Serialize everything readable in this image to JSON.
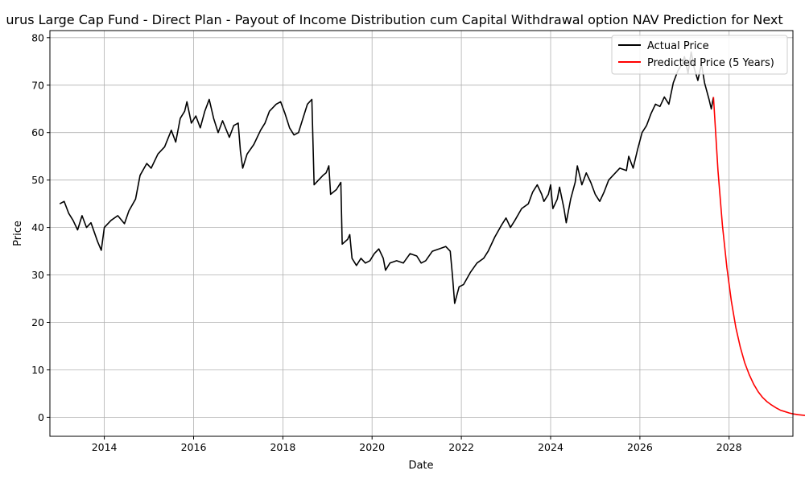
{
  "chart_data": {
    "type": "line",
    "title": "urus Large Cap Fund - Direct Plan - Payout of Income Distribution cum Capital Withdrawal option NAV Prediction for Next",
    "xlabel": "Date",
    "ylabel": "Price",
    "xlim": [
      2012.78,
      2029.43
    ],
    "ylim": [
      -4,
      81.5
    ],
    "xticks": [
      2014,
      2016,
      2018,
      2020,
      2022,
      2024,
      2026,
      2028
    ],
    "xtick_labels": [
      "2014",
      "2016",
      "2018",
      "2020",
      "2022",
      "2024",
      "2026",
      "2028"
    ],
    "yticks": [
      0,
      10,
      20,
      30,
      40,
      50,
      60,
      70,
      80
    ],
    "ytick_labels": [
      "0",
      "10",
      "20",
      "30",
      "40",
      "50",
      "60",
      "70",
      "80"
    ],
    "grid": true,
    "legend_position": "top-right",
    "series": [
      {
        "name": "Actual Price",
        "color": "#000000",
        "points": [
          [
            2013.0,
            45.0
          ],
          [
            2013.1,
            45.5
          ],
          [
            2013.2,
            43.0
          ],
          [
            2013.3,
            41.5
          ],
          [
            2013.4,
            39.5
          ],
          [
            2013.5,
            42.5
          ],
          [
            2013.6,
            40.0
          ],
          [
            2013.7,
            41.0
          ],
          [
            2013.85,
            37.0
          ],
          [
            2013.93,
            35.2
          ],
          [
            2014.0,
            40.0
          ],
          [
            2014.15,
            41.5
          ],
          [
            2014.3,
            42.5
          ],
          [
            2014.45,
            40.8
          ],
          [
            2014.55,
            43.5
          ],
          [
            2014.7,
            46.0
          ],
          [
            2014.8,
            51.0
          ],
          [
            2014.95,
            53.5
          ],
          [
            2015.05,
            52.5
          ],
          [
            2015.2,
            55.5
          ],
          [
            2015.35,
            57.0
          ],
          [
            2015.5,
            60.5
          ],
          [
            2015.6,
            58.0
          ],
          [
            2015.7,
            63.0
          ],
          [
            2015.8,
            64.5
          ],
          [
            2015.85,
            66.5
          ],
          [
            2015.95,
            62.0
          ],
          [
            2016.05,
            63.5
          ],
          [
            2016.15,
            61.0
          ],
          [
            2016.25,
            64.5
          ],
          [
            2016.35,
            67.0
          ],
          [
            2016.45,
            63.0
          ],
          [
            2016.55,
            60.0
          ],
          [
            2016.65,
            62.5
          ],
          [
            2016.8,
            59.0
          ],
          [
            2016.9,
            61.5
          ],
          [
            2017.0,
            62.0
          ],
          [
            2017.05,
            56.0
          ],
          [
            2017.1,
            52.5
          ],
          [
            2017.2,
            55.5
          ],
          [
            2017.35,
            57.5
          ],
          [
            2017.5,
            60.5
          ],
          [
            2017.6,
            62.0
          ],
          [
            2017.7,
            64.5
          ],
          [
            2017.85,
            66.0
          ],
          [
            2017.95,
            66.5
          ],
          [
            2018.05,
            64.0
          ],
          [
            2018.15,
            61.0
          ],
          [
            2018.25,
            59.5
          ],
          [
            2018.35,
            60.0
          ],
          [
            2018.45,
            63.0
          ],
          [
            2018.55,
            66.0
          ],
          [
            2018.65,
            67.0
          ],
          [
            2018.7,
            49.0
          ],
          [
            2018.8,
            50.0
          ],
          [
            2018.9,
            51.0
          ],
          [
            2018.97,
            51.5
          ],
          [
            2019.03,
            53.0
          ],
          [
            2019.07,
            47.0
          ],
          [
            2019.2,
            48.0
          ],
          [
            2019.3,
            49.5
          ],
          [
            2019.33,
            36.5
          ],
          [
            2019.45,
            37.5
          ],
          [
            2019.5,
            38.5
          ],
          [
            2019.55,
            33.5
          ],
          [
            2019.65,
            32.0
          ],
          [
            2019.75,
            33.5
          ],
          [
            2019.85,
            32.5
          ],
          [
            2019.95,
            33.0
          ],
          [
            2020.05,
            34.5
          ],
          [
            2020.15,
            35.5
          ],
          [
            2020.25,
            33.5
          ],
          [
            2020.3,
            31.0
          ],
          [
            2020.4,
            32.5
          ],
          [
            2020.55,
            33.0
          ],
          [
            2020.7,
            32.5
          ],
          [
            2020.85,
            34.5
          ],
          [
            2021.0,
            34.0
          ],
          [
            2021.1,
            32.5
          ],
          [
            2021.2,
            33.0
          ],
          [
            2021.35,
            35.0
          ],
          [
            2021.5,
            35.5
          ],
          [
            2021.65,
            36.0
          ],
          [
            2021.75,
            35.0
          ],
          [
            2021.8,
            30.0
          ],
          [
            2021.85,
            24.0
          ],
          [
            2021.95,
            27.5
          ],
          [
            2022.05,
            28.0
          ],
          [
            2022.2,
            30.5
          ],
          [
            2022.35,
            32.5
          ],
          [
            2022.5,
            33.5
          ],
          [
            2022.6,
            35.0
          ],
          [
            2022.75,
            38.0
          ],
          [
            2022.9,
            40.5
          ],
          [
            2023.0,
            42.0
          ],
          [
            2023.1,
            40.0
          ],
          [
            2023.2,
            41.5
          ],
          [
            2023.35,
            44.0
          ],
          [
            2023.5,
            45.0
          ],
          [
            2023.6,
            47.5
          ],
          [
            2023.7,
            49.0
          ],
          [
            2023.8,
            47.0
          ],
          [
            2023.85,
            45.5
          ],
          [
            2023.95,
            47.0
          ],
          [
            2024.0,
            49.0
          ],
          [
            2024.05,
            44.0
          ],
          [
            2024.15,
            46.0
          ],
          [
            2024.2,
            48.5
          ],
          [
            2024.3,
            44.0
          ],
          [
            2024.35,
            41.0
          ],
          [
            2024.45,
            46.0
          ],
          [
            2024.55,
            49.5
          ],
          [
            2024.6,
            53.0
          ],
          [
            2024.7,
            49.0
          ],
          [
            2024.8,
            51.5
          ],
          [
            2024.9,
            49.5
          ],
          [
            2025.0,
            47.0
          ],
          [
            2025.1,
            45.5
          ],
          [
            2025.2,
            47.5
          ],
          [
            2025.3,
            50.0
          ],
          [
            2025.45,
            51.5
          ],
          [
            2025.55,
            52.5
          ],
          [
            2025.7,
            52.0
          ],
          [
            2025.75,
            55.0
          ],
          [
            2025.85,
            52.5
          ],
          [
            2025.95,
            56.5
          ],
          [
            2026.05,
            60.0
          ],
          [
            2026.15,
            61.5
          ],
          [
            2026.25,
            64.0
          ],
          [
            2026.35,
            66.0
          ],
          [
            2026.45,
            65.5
          ],
          [
            2026.55,
            67.5
          ],
          [
            2026.65,
            66.0
          ],
          [
            2026.75,
            70.5
          ],
          [
            2026.85,
            73.0
          ],
          [
            2026.95,
            74.5
          ],
          [
            2027.0,
            76.0
          ],
          [
            2027.08,
            72.5
          ],
          [
            2027.15,
            77.0
          ],
          [
            2027.22,
            73.5
          ],
          [
            2027.3,
            71.0
          ],
          [
            2027.38,
            74.5
          ],
          [
            2027.45,
            70.5
          ],
          [
            2027.55,
            67.0
          ],
          [
            2027.6,
            65.0
          ],
          [
            2027.65,
            67.5
          ]
        ]
      },
      {
        "name": "Predicted Price (5 Years)",
        "color": "#ff0000",
        "points": [
          [
            2027.65,
            67.5
          ],
          [
            2027.75,
            52.0
          ],
          [
            2027.85,
            40.5
          ],
          [
            2027.95,
            31.5
          ],
          [
            2028.05,
            24.5
          ],
          [
            2028.15,
            19.0
          ],
          [
            2028.25,
            14.8
          ],
          [
            2028.35,
            11.5
          ],
          [
            2028.45,
            9.0
          ],
          [
            2028.55,
            7.0
          ],
          [
            2028.65,
            5.4
          ],
          [
            2028.75,
            4.2
          ],
          [
            2028.85,
            3.3
          ],
          [
            2028.95,
            2.6
          ],
          [
            2029.05,
            2.0
          ],
          [
            2029.15,
            1.5
          ],
          [
            2029.25,
            1.2
          ],
          [
            2029.35,
            0.9
          ],
          [
            2029.45,
            0.7
          ],
          [
            2029.55,
            0.55
          ],
          [
            2029.7,
            0.4
          ],
          [
            2029.9,
            0.25
          ],
          [
            2030.1,
            0.15
          ],
          [
            2030.3,
            0.1
          ],
          [
            2030.5,
            0.08
          ]
        ]
      }
    ]
  }
}
